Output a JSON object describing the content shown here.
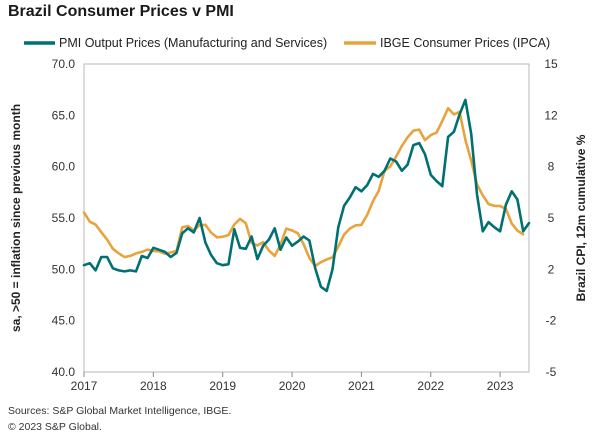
{
  "title": "Brazil Consumer Prices v PMI",
  "footer": {
    "sources": "Sources: S&P Global Market Intelligence, IBGE.",
    "copyright": "© 2023 S&P Global."
  },
  "chart_data": {
    "type": "line",
    "title": "Brazil Consumer Prices v PMI",
    "legend_position": "top",
    "grid": false,
    "x_axis": {
      "ticks": [
        "2017",
        "2018",
        "2019",
        "2020",
        "2021",
        "2022",
        "2023"
      ],
      "range": [
        "2017-01",
        "2023-06"
      ]
    },
    "y_left": {
      "label": "sa, >50 = inflation since previous month",
      "range": [
        40.0,
        70.0
      ],
      "ticks": [
        "70.0",
        "65.0",
        "60.0",
        "55.0",
        "50.0",
        "45.0",
        "40.0"
      ]
    },
    "y_right": {
      "label": "Brazil CPI, 12m cumulative %",
      "range": [
        -5,
        15
      ],
      "ticks": [
        "15",
        "12",
        "8",
        "5",
        "2",
        "-2",
        "-5"
      ]
    },
    "series": [
      {
        "name": "PMI Output Prices (Manufacturing and Services)",
        "axis": "left",
        "color": "#007073",
        "start": "2017-01",
        "values": [
          50.4,
          50.6,
          49.9,
          51.2,
          51.2,
          50.1,
          49.9,
          49.8,
          49.9,
          49.8,
          51.3,
          51.1,
          52.1,
          51.9,
          51.7,
          51.2,
          51.6,
          53.5,
          54.0,
          53.6,
          55.0,
          52.6,
          51.4,
          50.6,
          50.4,
          50.5,
          53.9,
          52.1,
          52.0,
          53.2,
          51.0,
          52.3,
          52.9,
          54.0,
          51.9,
          53.1,
          52.3,
          52.7,
          53.2,
          52.8,
          50.1,
          48.3,
          47.9,
          50.0,
          54.1,
          56.2,
          57.0,
          58.0,
          57.6,
          58.2,
          59.3,
          59.0,
          59.6,
          60.8,
          60.5,
          59.6,
          60.2,
          62.1,
          62.3,
          61.2,
          59.2,
          58.6,
          58.1,
          62.9,
          63.4,
          65.1,
          66.5,
          63.2,
          57.3,
          53.7,
          54.6,
          54.1,
          53.7,
          56.3,
          57.6,
          56.8,
          53.7,
          54.5
        ]
      },
      {
        "name": "IBGE Consumer Prices (IPCA)",
        "axis": "right",
        "color": "#E8A33D",
        "start": "2017-01",
        "values": [
          5.35,
          4.76,
          4.57,
          4.08,
          3.6,
          3.0,
          2.71,
          2.46,
          2.54,
          2.7,
          2.8,
          2.95,
          2.86,
          2.84,
          2.68,
          2.76,
          2.86,
          4.39,
          4.48,
          4.19,
          4.53,
          4.56,
          4.05,
          3.75,
          3.78,
          3.89,
          4.58,
          4.94,
          4.66,
          3.37,
          3.22,
          3.43,
          2.89,
          2.54,
          3.27,
          4.31,
          4.19,
          4.01,
          3.3,
          2.4,
          1.88,
          2.13,
          2.31,
          2.44,
          3.14,
          3.92,
          4.31,
          4.52,
          4.56,
          5.2,
          6.1,
          6.76,
          8.06,
          8.35,
          8.99,
          9.68,
          10.25,
          10.67,
          10.74,
          10.06,
          10.38,
          10.54,
          11.3,
          12.13,
          11.73,
          11.89,
          10.07,
          8.73,
          7.17,
          6.47,
          5.9,
          5.79,
          5.77,
          5.6,
          4.65,
          4.18,
          3.94
        ]
      }
    ]
  }
}
